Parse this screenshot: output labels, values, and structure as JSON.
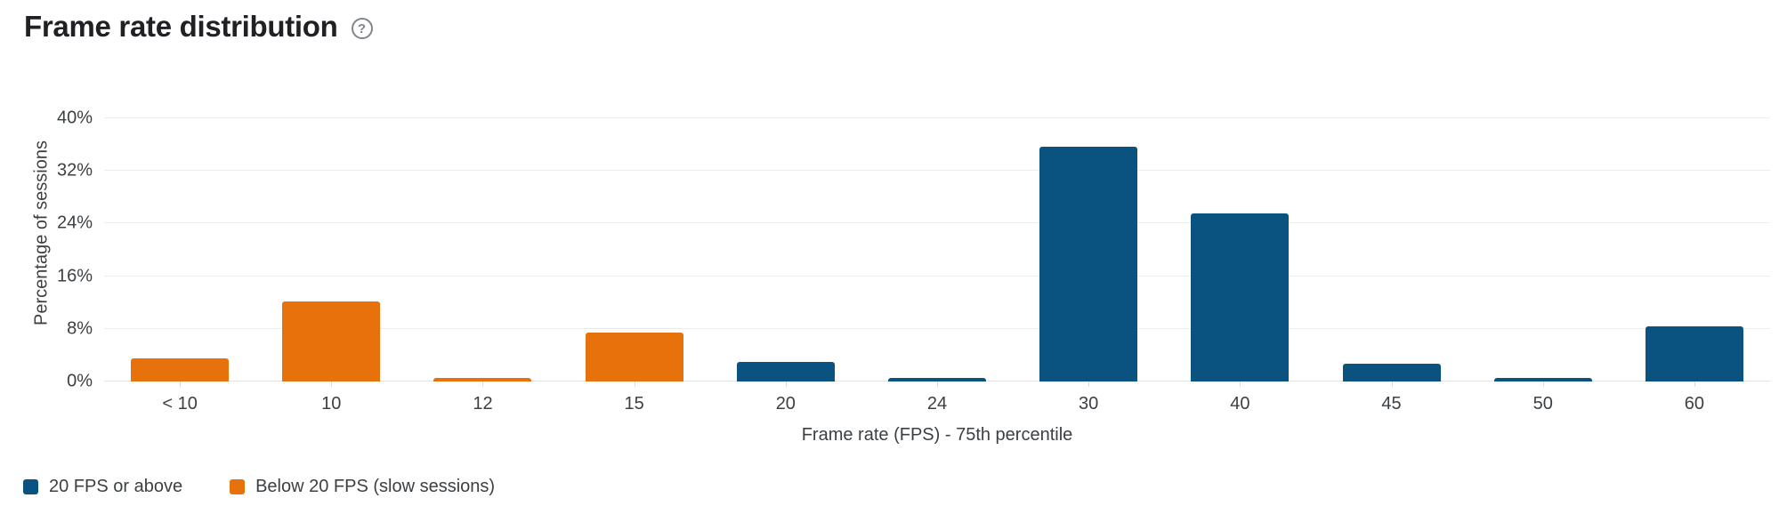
{
  "header": {
    "title": "Frame rate distribution",
    "help_icon": "?"
  },
  "chart_data": {
    "type": "bar",
    "title": "Frame rate distribution",
    "categories": [
      "< 10",
      "10",
      "12",
      "15",
      "20",
      "24",
      "30",
      "40",
      "45",
      "50",
      "60"
    ],
    "values": [
      3.5,
      12.2,
      0.6,
      7.4,
      3.0,
      0.5,
      35.7,
      25.5,
      2.7,
      0.5,
      8.4
    ],
    "bar_series": [
      "below",
      "below",
      "below",
      "below",
      "above",
      "above",
      "above",
      "above",
      "above",
      "above",
      "above"
    ],
    "series_colors": {
      "above": "#0a5381",
      "below": "#e7710a"
    },
    "xlabel": "Frame rate (FPS) - 75th percentile",
    "ylabel": "Percentage of sessions",
    "y_ticks": [
      "0%",
      "8%",
      "16%",
      "24%",
      "32%",
      "40%"
    ],
    "ylim": [
      0,
      40
    ],
    "grid": "horizontal",
    "legend_position": "bottom-left",
    "legend": [
      {
        "label": "20 FPS or above",
        "series": "above",
        "color": "#0a5381"
      },
      {
        "label": "Below 20 FPS (slow sessions)",
        "series": "below",
        "color": "#e7710a"
      }
    ]
  }
}
